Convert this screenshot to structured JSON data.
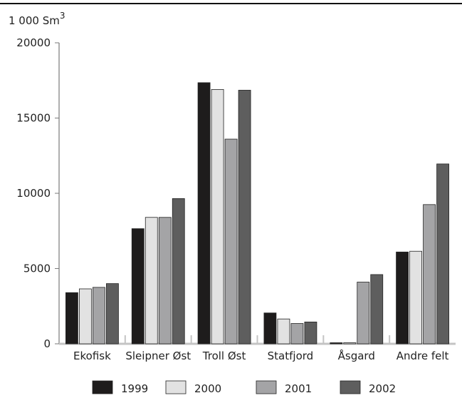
{
  "chart_data": {
    "type": "bar",
    "unit_label": "1 000 Sm",
    "unit_superscript": "3",
    "categories": [
      "Ekofisk",
      "Sleipner Øst",
      "Troll Øst",
      "Statfjord",
      "Åsgard",
      "Andre felt"
    ],
    "series": [
      {
        "name": "1999",
        "color": "#1e1c1c",
        "values": [
          3400,
          7650,
          17350,
          2050,
          50,
          6100
        ]
      },
      {
        "name": "2000",
        "color": "#e2e2e2",
        "values": [
          3650,
          8400,
          16900,
          1650,
          50,
          6150
        ]
      },
      {
        "name": "2001",
        "color": "#a4a4a6",
        "values": [
          3750,
          8400,
          13600,
          1350,
          4100,
          9250
        ]
      },
      {
        "name": "2002",
        "color": "#5e5e5e",
        "values": [
          4000,
          9650,
          16850,
          1450,
          4600,
          11950
        ]
      }
    ],
    "ylim": [
      0,
      20000
    ],
    "yticks": [
      "0",
      "5000",
      "10000",
      "15000",
      "20000"
    ],
    "grid": false,
    "legend_position": "bottom"
  }
}
